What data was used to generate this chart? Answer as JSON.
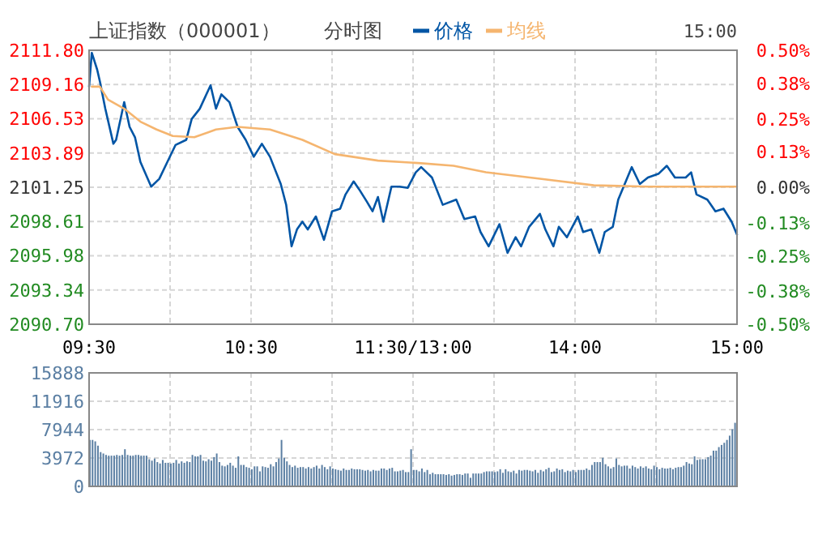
{
  "chart_data": [
    {
      "type": "line",
      "title": "上证指数（000001）",
      "subtitle": "分时图",
      "annotations": [
        "15:00"
      ],
      "legend": "top",
      "grid": true,
      "categories": [
        "09:30",
        null,
        null,
        null,
        null,
        null,
        null,
        null,
        null,
        null,
        null,
        null,
        null,
        null,
        null,
        null,
        null,
        null,
        null,
        null,
        null,
        null,
        null,
        null,
        null,
        null,
        null,
        null,
        null,
        null,
        null,
        null,
        null,
        null,
        null,
        null,
        null,
        null,
        null,
        null,
        null,
        null,
        null,
        null,
        null,
        null,
        null,
        null,
        null,
        null,
        null,
        null,
        null,
        null,
        null,
        null,
        null,
        null,
        null,
        null,
        "10:30",
        null,
        null,
        null,
        null,
        null,
        null,
        null,
        null,
        null,
        null,
        null,
        null,
        null,
        null,
        null,
        null,
        null,
        null,
        null,
        null,
        null,
        null,
        null,
        null,
        null,
        null,
        null,
        null,
        null,
        null,
        null,
        null,
        null,
        null,
        null,
        null,
        null,
        null,
        null,
        null,
        null,
        null,
        null,
        null,
        null,
        null,
        null,
        null,
        null,
        null,
        null,
        null,
        null,
        null,
        null,
        null,
        null,
        null,
        null,
        "11:30/13:00",
        null,
        null,
        null,
        null,
        null,
        null,
        null,
        null,
        null,
        null,
        null,
        null,
        null,
        null,
        null,
        null,
        null,
        null,
        null,
        null,
        null,
        null,
        null,
        null,
        null,
        null,
        null,
        null,
        null,
        null,
        null,
        null,
        null,
        null,
        null,
        null,
        null,
        null,
        null,
        null,
        null,
        null,
        null,
        null,
        null,
        null,
        null,
        null,
        null,
        null,
        null,
        null,
        null,
        null,
        null,
        null,
        null,
        null,
        null,
        "14:00",
        null,
        null,
        null,
        null,
        null,
        null,
        null,
        null,
        null,
        null,
        null,
        null,
        null,
        null,
        null,
        null,
        null,
        null,
        null,
        null,
        null,
        null,
        null,
        null,
        null,
        null,
        null,
        null,
        null,
        null,
        null,
        null,
        null,
        null,
        null,
        null,
        null,
        null,
        null,
        null,
        null,
        null,
        null,
        null,
        null,
        null,
        null,
        null,
        null,
        null,
        null,
        null,
        null,
        null,
        null,
        null,
        null,
        null,
        null,
        "15:00"
      ],
      "ylim": [
        2090.7,
        2111.8
      ],
      "yticks": [
        {
          "value": 2090.7,
          "label": "2090.70"
        },
        {
          "value": 2093.34,
          "label": "2093.34"
        },
        {
          "value": 2095.98,
          "label": "2095.98"
        },
        {
          "value": 2098.61,
          "label": "2098.61"
        },
        {
          "value": 2101.25,
          "label": "2101.25"
        },
        {
          "value": 2103.89,
          "label": "2103.89"
        },
        {
          "value": 2106.53,
          "label": "2106.53"
        },
        {
          "value": 2109.16,
          "label": "2109.16"
        },
        {
          "value": 2111.8,
          "label": "2111.80"
        }
      ],
      "y2lim": [
        -0.5,
        0.5
      ],
      "y2ticks": [
        {
          "value": -0.5,
          "label": "-0.50%"
        },
        {
          "value": -0.38,
          "label": "-0.38%"
        },
        {
          "value": -0.25,
          "label": "-0.25%"
        },
        {
          "value": -0.13,
          "label": "-0.13%"
        },
        {
          "value": 0,
          "label": "0.00%"
        },
        {
          "value": 0.13,
          "label": "0.13%"
        },
        {
          "value": 0.25,
          "label": "0.25%"
        },
        {
          "value": 0.38,
          "label": "0.38%"
        },
        {
          "value": 0.5,
          "label": "0.50%"
        }
      ],
      "series": [
        {
          "name": "价格",
          "color": "#0055a5",
          "values": [
            2109.0,
            2111.6,
            null,
            2110.3,
            2109.4,
            null,
            2107.3,
            null,
            null,
            2104.6,
            2104.9,
            null,
            null,
            2107.8,
            null,
            2105.9,
            null,
            2105.1,
            null,
            2103.2,
            null,
            null,
            null,
            2101.3,
            null,
            null,
            2101.9,
            null,
            null,
            2103.2,
            null,
            null,
            2104.5,
            null,
            null,
            null,
            2104.9,
            null,
            2106.5,
            null,
            null,
            2107.3,
            null,
            null,
            null,
            2109.1,
            null,
            2107.3,
            null,
            2108.4,
            null,
            null,
            2107.8,
            null,
            null,
            2105.9,
            null,
            null,
            2104.9,
            null,
            null,
            2103.6,
            null,
            null,
            2104.6,
            null,
            null,
            2103.6,
            null,
            null,
            null,
            2101.5,
            null,
            2099.9,
            null,
            2096.7,
            null,
            2098.0,
            null,
            2098.6,
            null,
            2098.0,
            null,
            null,
            2099.0,
            null,
            null,
            2097.2,
            null,
            null,
            2099.4,
            null,
            null,
            2099.6,
            null,
            2100.7,
            null,
            null,
            2101.7,
            null,
            2101.1,
            null,
            null,
            2100.1,
            null,
            2099.4,
            null,
            2100.5,
            null,
            2098.6,
            null,
            null,
            2101.3,
            null,
            null,
            2101.3,
            null,
            null,
            2101.2,
            null,
            null,
            2102.4,
            null,
            2102.8,
            null,
            null,
            null,
            2102.0,
            null,
            null,
            null,
            2099.9,
            null,
            null,
            null,
            null,
            2100.3,
            null,
            null,
            2098.8,
            null,
            null,
            null,
            2099.0,
            null,
            2097.8,
            null,
            null,
            2096.7,
            null,
            null,
            null,
            2098.4,
            null,
            null,
            2096.2,
            null,
            null,
            2097.4,
            null,
            2096.7,
            null,
            null,
            2098.2,
            null,
            null,
            null,
            2099.2,
            null,
            2098.0,
            null,
            null,
            2096.7,
            null,
            2098.2,
            null,
            null,
            2097.4,
            null,
            null,
            null,
            2099.0,
            null,
            2097.8,
            null,
            null,
            2098.0,
            null,
            null,
            2096.2,
            null,
            2097.8,
            null,
            null,
            2098.2,
            null,
            2100.3,
            null,
            2101.3,
            null,
            null,
            2102.8,
            null,
            null,
            2101.5,
            null,
            null,
            2102.0,
            null,
            null,
            null,
            2102.3,
            null,
            null,
            2102.9,
            null,
            null,
            2102.0,
            null,
            null,
            null,
            2102.0,
            null,
            2102.4,
            null,
            2100.7,
            null,
            null,
            null,
            2100.3,
            null,
            null,
            2099.4,
            null,
            null,
            2099.6,
            null,
            null,
            2098.6,
            null,
            2097.6
          ]
        },
        {
          "name": "均线",
          "color": "#f5b56f",
          "values": [
            null,
            2109.0,
            null,
            null,
            2109.0,
            null,
            null,
            2108.0,
            null,
            null,
            null,
            null,
            null,
            2107.3,
            null,
            null,
            null,
            null,
            null,
            2106.3,
            null,
            null,
            null,
            null,
            null,
            2105.7,
            null,
            null,
            null,
            null,
            null,
            2105.2,
            null,
            null,
            null,
            null,
            null,
            null,
            null,
            2105.1,
            null,
            null,
            null,
            null,
            null,
            null,
            null,
            2105.7,
            null,
            null,
            null,
            null,
            null,
            null,
            null,
            2105.9,
            null,
            null,
            null,
            null,
            null,
            null,
            null,
            null,
            null,
            null,
            null,
            2105.7,
            null,
            null,
            null,
            null,
            null,
            null,
            null,
            null,
            null,
            null,
            null,
            2104.9,
            null,
            null,
            null,
            null,
            null,
            null,
            null,
            null,
            null,
            null,
            null,
            2103.8,
            null,
            null,
            null,
            null,
            null,
            null,
            null,
            null,
            null,
            null,
            null,
            null,
            null,
            null,
            null,
            2103.3,
            null,
            null,
            null,
            null,
            null,
            null,
            null,
            null,
            null,
            null,
            null,
            null,
            null,
            null,
            null,
            2103.1,
            null,
            null,
            null,
            null,
            null,
            null,
            null,
            null,
            null,
            null,
            null,
            2102.9,
            null,
            null,
            null,
            null,
            null,
            null,
            null,
            null,
            null,
            null,
            null,
            2102.4,
            null,
            null,
            null,
            null,
            null,
            null,
            null,
            null,
            null,
            null,
            null,
            null,
            null,
            null,
            null,
            null,
            null,
            null,
            null,
            2101.9,
            null,
            null,
            null,
            null,
            null,
            null,
            null,
            null,
            null,
            null,
            null,
            null,
            null,
            null,
            null,
            null,
            null,
            null,
            null,
            2101.4,
            null,
            null,
            null,
            null,
            null,
            null,
            null,
            null,
            null,
            null,
            null,
            null,
            null,
            null,
            null,
            null,
            null,
            null,
            null,
            2101.3,
            null,
            null,
            null,
            null,
            null,
            null,
            null,
            null,
            null,
            null,
            null,
            null,
            null,
            null,
            null,
            null,
            null,
            null,
            null,
            null,
            null,
            null,
            null,
            null,
            null,
            null,
            null,
            null,
            null,
            null,
            null,
            null,
            2101.3
          ]
        }
      ]
    },
    {
      "type": "bar",
      "grid": true,
      "tick_labels": "y",
      "color": "#5b7fa3",
      "categories": [
        null,
        null,
        null,
        null,
        null,
        null,
        null,
        null,
        null,
        null,
        null,
        null,
        null,
        null,
        null,
        null,
        null,
        null,
        null,
        null,
        null,
        null,
        null,
        null,
        null,
        null,
        null,
        null,
        null,
        null,
        null,
        null,
        null,
        null,
        null,
        null,
        null,
        null,
        null,
        null,
        null,
        null,
        null,
        null,
        null,
        null,
        null,
        null,
        null,
        null,
        null,
        null,
        null,
        null,
        null,
        null,
        null,
        null,
        null,
        null,
        null,
        null,
        null,
        null,
        null,
        null,
        null,
        null,
        null,
        null,
        null,
        null,
        null,
        null,
        null,
        null,
        null,
        null,
        null,
        null,
        null,
        null,
        null,
        null,
        null,
        null,
        null,
        null,
        null,
        null,
        null,
        null,
        null,
        null,
        null,
        null,
        null,
        null,
        null,
        null,
        null,
        null,
        null,
        null,
        null,
        null,
        null,
        null,
        null,
        null,
        null,
        null,
        null,
        null,
        null,
        null,
        null,
        null,
        null,
        null,
        null,
        null,
        null,
        null,
        null,
        null,
        null,
        null,
        null,
        null,
        null,
        null,
        null,
        null,
        null,
        null,
        null,
        null,
        null,
        null,
        null,
        null,
        null,
        null,
        null,
        null,
        null,
        null,
        null,
        null,
        null,
        null,
        null,
        null,
        null,
        null,
        null,
        null,
        null,
        null,
        null,
        null,
        null,
        null,
        null,
        null,
        null,
        null,
        null,
        null,
        null,
        null,
        null,
        null,
        null,
        null,
        null,
        null,
        null,
        null,
        null,
        null,
        null,
        null,
        null,
        null,
        null,
        null,
        null,
        null,
        null,
        null,
        null,
        null,
        null,
        null,
        null,
        null,
        null,
        null,
        null,
        null,
        null,
        null,
        null,
        null,
        null,
        null,
        null,
        null,
        null,
        null,
        null,
        null,
        null,
        null,
        null,
        null,
        null,
        null,
        null,
        null,
        null,
        null,
        null,
        null,
        null,
        null,
        null,
        null,
        null,
        null,
        null,
        null,
        null,
        null,
        null,
        null,
        null,
        null,
        null
      ],
      "ylim": [
        0,
        15888
      ],
      "yticks": [
        0,
        3972,
        7944,
        11916,
        15888
      ],
      "values": [
        null,
        6500,
        6500,
        6300,
        5700,
        4800,
        4600,
        4400,
        4300,
        4300,
        4300,
        4400,
        4300,
        4400,
        5200,
        4400,
        4300,
        4300,
        4400,
        4400,
        4300,
        4300,
        4300,
        3800,
        3600,
        3900,
        3400,
        3200,
        3700,
        3300,
        3300,
        3200,
        3300,
        3700,
        3200,
        3500,
        3300,
        3500,
        3400,
        4400,
        4200,
        4200,
        4400,
        3600,
        3500,
        3800,
        3600,
        4100,
        4600,
        3400,
        2900,
        2800,
        3000,
        3300,
        2900,
        2600,
        4200,
        3000,
        3000,
        2700,
        2600,
        2400,
        2800,
        2800,
        2100,
        2800,
        2700,
        2600,
        3100,
        2800,
        3400,
        3900,
        6500,
        4000,
        3500,
        3000,
        2700,
        2900,
        2600,
        2700,
        2700,
        2500,
        2700,
        2500,
        2700,
        2900,
        2500,
        3000,
        2700,
        2400,
        2800,
        2500,
        2400,
        2300,
        2200,
        2500,
        2300,
        2300,
        2500,
        2400,
        2400,
        2400,
        2300,
        2200,
        2300,
        2100,
        2300,
        2200,
        2200,
        2500,
        2500,
        2300,
        2500,
        2600,
        2100,
        2100,
        2200,
        2300,
        2000,
        2000,
        5200,
        2300,
        2300,
        2100,
        2500,
        2000,
        2300,
        1700,
        1900,
        1700,
        1700,
        1700,
        1700,
        1600,
        1700,
        1500,
        1600,
        1700,
        1700,
        1600,
        1800,
        1800,
        1200,
        1800,
        1800,
        1800,
        1800,
        2000,
        2100,
        2100,
        2100,
        2000,
        2100,
        2400,
        1900,
        2400,
        2100,
        2000,
        2200,
        1800,
        2300,
        2200,
        2300,
        2300,
        2200,
        2100,
        2300,
        1900,
        2300,
        2100,
        2400,
        2600,
        2000,
        2100,
        2500,
        2300,
        2400,
        2000,
        2200,
        2100,
        2300,
        2000,
        2300,
        2300,
        2300,
        2500,
        2300,
        3000,
        3400,
        3400,
        3400,
        4000,
        3100,
        2800,
        2500,
        2700,
        3900,
        3000,
        2800,
        2900,
        2900,
        2500,
        2900,
        2700,
        2500,
        2800,
        2600,
        2800,
        2500,
        2400,
        2900,
        2700,
        2400,
        2600,
        2500,
        2500,
        2600,
        2400,
        2600,
        2700,
        2700,
        2900,
        3400,
        3200,
        3100,
        4200,
        3700,
        3800,
        3800,
        3800,
        4100,
        4300,
        5000,
        5000,
        5500,
        5800,
        6100,
        6500,
        7100,
        8000,
        8900
      ]
    }
  ]
}
